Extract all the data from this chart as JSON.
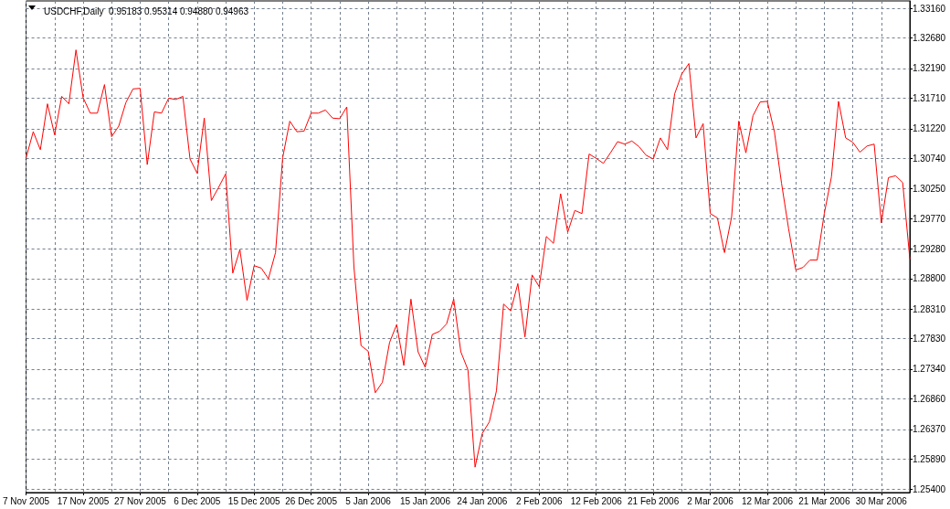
{
  "chart_data": {
    "type": "line",
    "title": "USDCHF,Daily  0.95183 0.95314 0.94880 0.94963",
    "categories": [
      "7 Nov 2005",
      null,
      null,
      null,
      null,
      null,
      null,
      null,
      "17 Nov 2005",
      null,
      null,
      null,
      null,
      null,
      null,
      null,
      "27 Nov 2005",
      null,
      null,
      null,
      null,
      null,
      null,
      null,
      "6 Dec 2005",
      null,
      null,
      null,
      null,
      null,
      null,
      null,
      "15 Dec 2005",
      null,
      null,
      null,
      null,
      null,
      null,
      null,
      "26 Dec 2005",
      null,
      null,
      null,
      null,
      null,
      null,
      null,
      "5 Jan 2006",
      null,
      null,
      null,
      null,
      null,
      null,
      null,
      "15 Jan 2006",
      null,
      null,
      null,
      null,
      null,
      null,
      null,
      "24 Jan 2006",
      null,
      null,
      null,
      null,
      null,
      null,
      null,
      "2 Feb 2006",
      null,
      null,
      null,
      null,
      null,
      null,
      null,
      "12 Feb 2006",
      null,
      null,
      null,
      null,
      null,
      null,
      null,
      "21 Feb 2006",
      null,
      null,
      null,
      null,
      null,
      null,
      null,
      "2 Mar 2006",
      null,
      null,
      null,
      null,
      null,
      null,
      null,
      "12 Mar 2006",
      null,
      null,
      null,
      null,
      null,
      null,
      null,
      "21 Mar 2006",
      null,
      null,
      null,
      null,
      null,
      null,
      null,
      "30 Mar 2006",
      null,
      null,
      null,
      null
    ],
    "values": [
      1.3075,
      1.3117,
      1.3088,
      1.3162,
      1.3112,
      1.3174,
      1.3162,
      1.3249,
      1.3172,
      1.3147,
      1.3147,
      1.3193,
      1.3109,
      1.3126,
      1.3164,
      1.3186,
      1.3187,
      1.3064,
      1.3149,
      1.3147,
      1.3171,
      1.3169,
      1.3174,
      1.3073,
      1.305,
      1.3139,
      1.3006,
      1.3027,
      1.3049,
      1.2889,
      1.2927,
      1.2845,
      1.2901,
      1.2897,
      1.288,
      1.2922,
      1.3075,
      1.3134,
      1.3117,
      1.3118,
      1.3147,
      1.3147,
      1.3152,
      1.3139,
      1.3138,
      1.3157,
      1.2899,
      1.2772,
      1.2763,
      1.2696,
      1.2713,
      1.2777,
      1.2806,
      1.274,
      1.2847,
      1.2762,
      1.2737,
      1.279,
      1.2795,
      1.2807,
      1.2847,
      1.2762,
      1.2733,
      1.2576,
      1.263,
      1.2649,
      1.2699,
      1.2839,
      1.2828,
      1.2872,
      1.2786,
      1.2886,
      1.2867,
      1.2948,
      1.2937,
      1.3017,
      1.2955,
      1.299,
      1.2985,
      1.3081,
      1.3074,
      1.3066,
      1.3083,
      1.3101,
      1.3097,
      1.3102,
      1.3093,
      1.3079,
      1.3073,
      1.3107,
      1.3088,
      1.3178,
      1.321,
      1.3227,
      1.3107,
      1.313,
      1.2985,
      1.2978,
      1.2922,
      1.298,
      1.3134,
      1.3083,
      1.3143,
      1.3165,
      1.3166,
      1.3117,
      1.3034,
      1.296,
      1.2894,
      1.2898,
      1.291,
      1.291,
      1.2985,
      1.3044,
      1.3166,
      1.3107,
      1.31,
      1.3084,
      1.3094,
      1.3097,
      1.297,
      1.3043,
      1.3046,
      1.3035,
      1.2912
    ],
    "color": "#ff0000",
    "ylim": [
      1.2535,
      1.3328
    ],
    "yticks": [
      {
        "value": 1.254,
        "label": "1.25400"
      },
      {
        "value": 1.2589,
        "label": "1.25890"
      },
      {
        "value": 1.2637,
        "label": "1.26370"
      },
      {
        "value": 1.2686,
        "label": "1.26860"
      },
      {
        "value": 1.2734,
        "label": "1.27340"
      },
      {
        "value": 1.2783,
        "label": "1.27830"
      },
      {
        "value": 1.2831,
        "label": "1.28310"
      },
      {
        "value": 1.288,
        "label": "1.28800"
      },
      {
        "value": 1.2928,
        "label": "1.29280"
      },
      {
        "value": 1.2977,
        "label": "1.29770"
      },
      {
        "value": 1.3025,
        "label": "1.30250"
      },
      {
        "value": 1.3074,
        "label": "1.30740"
      },
      {
        "value": 1.3122,
        "label": "1.31220"
      },
      {
        "value": 1.3171,
        "label": "1.31710"
      },
      {
        "value": 1.3219,
        "label": "1.32190"
      },
      {
        "value": 1.3268,
        "label": "1.32680"
      },
      {
        "value": 1.3316,
        "label": "1.33160"
      }
    ],
    "grid": true,
    "marker": "none",
    "line_style": "solid"
  }
}
